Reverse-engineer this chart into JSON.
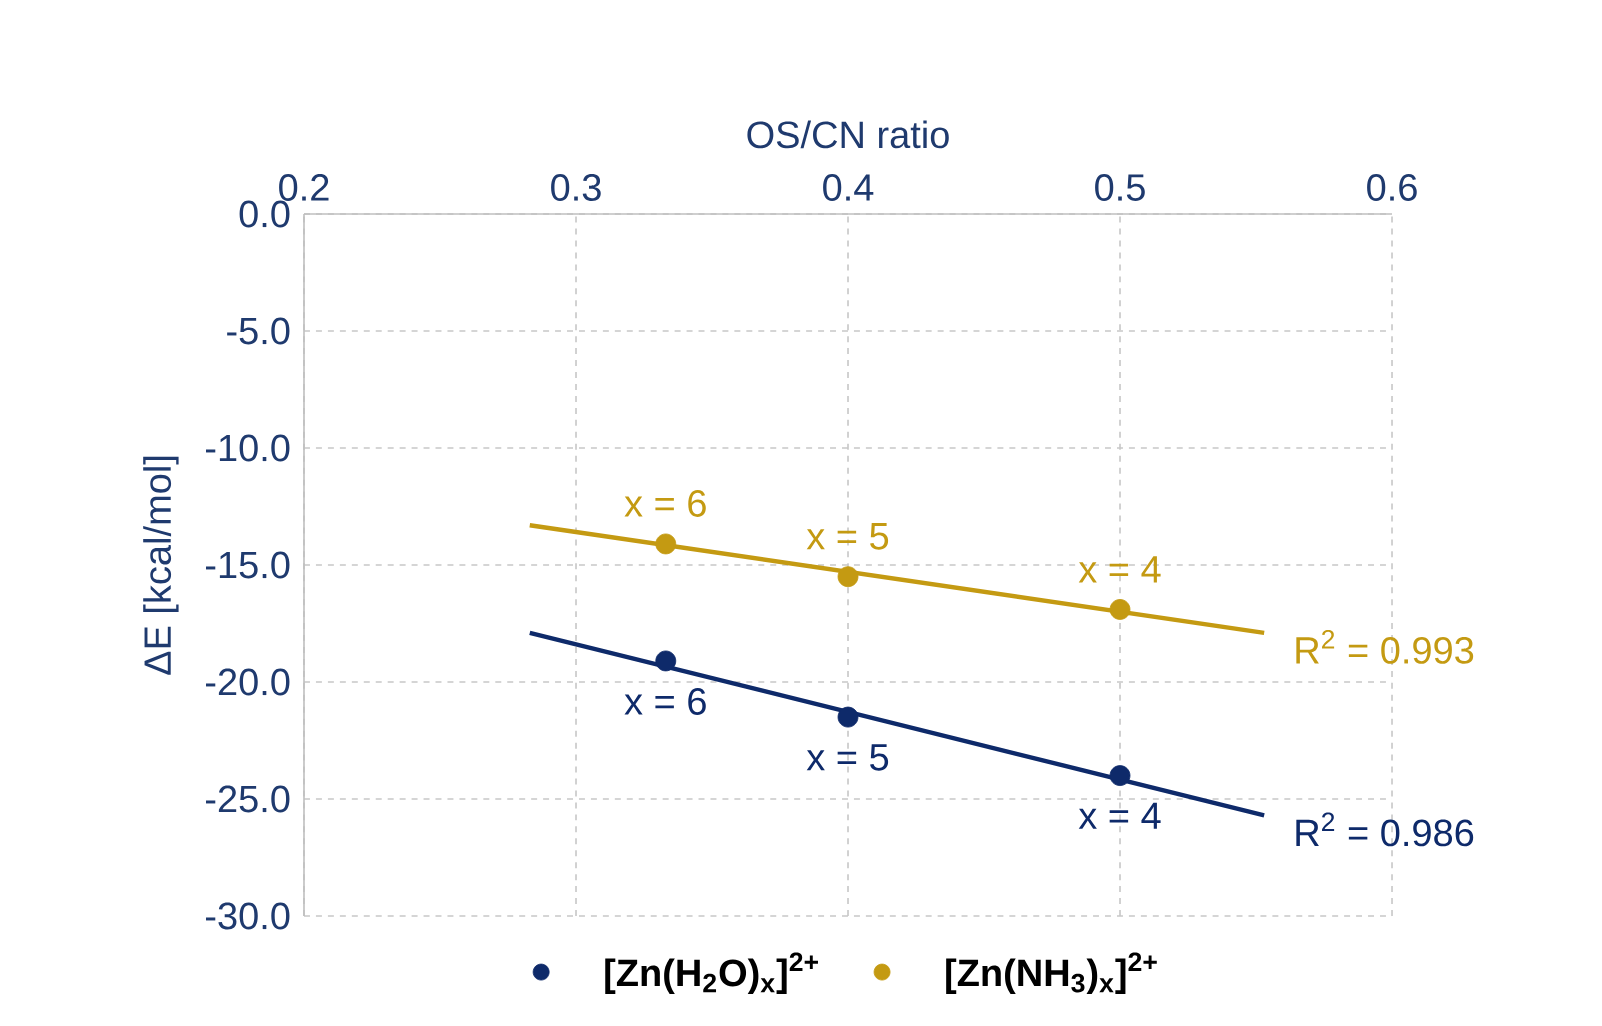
{
  "chart_data": {
    "type": "scatter",
    "xlabel": "OS/CN ratio",
    "ylabel": "ΔE [kcal/mol]",
    "xlim": [
      0.2,
      0.6
    ],
    "xticks": [
      0.2,
      0.3,
      0.4,
      0.5,
      0.6
    ],
    "ylim": [
      -30,
      0
    ],
    "yticks": [
      {
        "value": 0,
        "label": "0.0"
      },
      {
        "value": -5,
        "label": "-5.0"
      },
      {
        "value": -10,
        "label": "-10.0"
      },
      {
        "value": -15,
        "label": "-15.0"
      },
      {
        "value": -20,
        "label": "-20.0"
      },
      {
        "value": -25,
        "label": "-25.0"
      },
      {
        "value": -30,
        "label": "-30.0"
      }
    ],
    "grid": true,
    "legend": "bottom",
    "series": [
      {
        "name": "[Zn(H$_{2}$O)$_{x}$]$^{2+}$",
        "marker": "circle",
        "color": "#0e2a6a",
        "x": [
          0.333,
          0.4,
          0.5
        ],
        "values": [
          -19.1,
          -21.5,
          -24.0
        ]
      },
      {
        "name": "[Zn(NH$_{3}$)$_{x}$]$^{2+}$",
        "marker": "circle",
        "color": "#c49a12",
        "x": [
          0.333,
          0.4,
          0.5
        ],
        "values": [
          -14.1,
          -15.5,
          -16.9
        ]
      },
      {
        "type": "line",
        "name": "R$^{2}$ = 0.986",
        "marker": "none",
        "color": "#0e2a6a",
        "x": [
          0.283,
          0.553
        ],
        "values": [
          -17.9,
          -25.7
        ]
      },
      {
        "type": "line",
        "name": "R$^{2}$ = 0.993",
        "marker": "none",
        "color": "#c49a12",
        "x": [
          0.283,
          0.553
        ],
        "values": [
          -13.3,
          -17.9
        ]
      }
    ],
    "annotations": [
      {
        "text": "x = 6",
        "x": 0.333,
        "y": -19.1
      },
      {
        "text": "x = 5",
        "x": 0.4,
        "y": -21.5
      },
      {
        "text": "x = 4",
        "x": 0.5,
        "y": -24.0
      },
      {
        "text": "x = 6",
        "x": 0.333,
        "y": -14.1
      },
      {
        "text": "x = 5",
        "x": 0.4,
        "y": -15.5
      },
      {
        "text": "x = 4",
        "x": 0.5,
        "y": -16.9
      }
    ]
  }
}
